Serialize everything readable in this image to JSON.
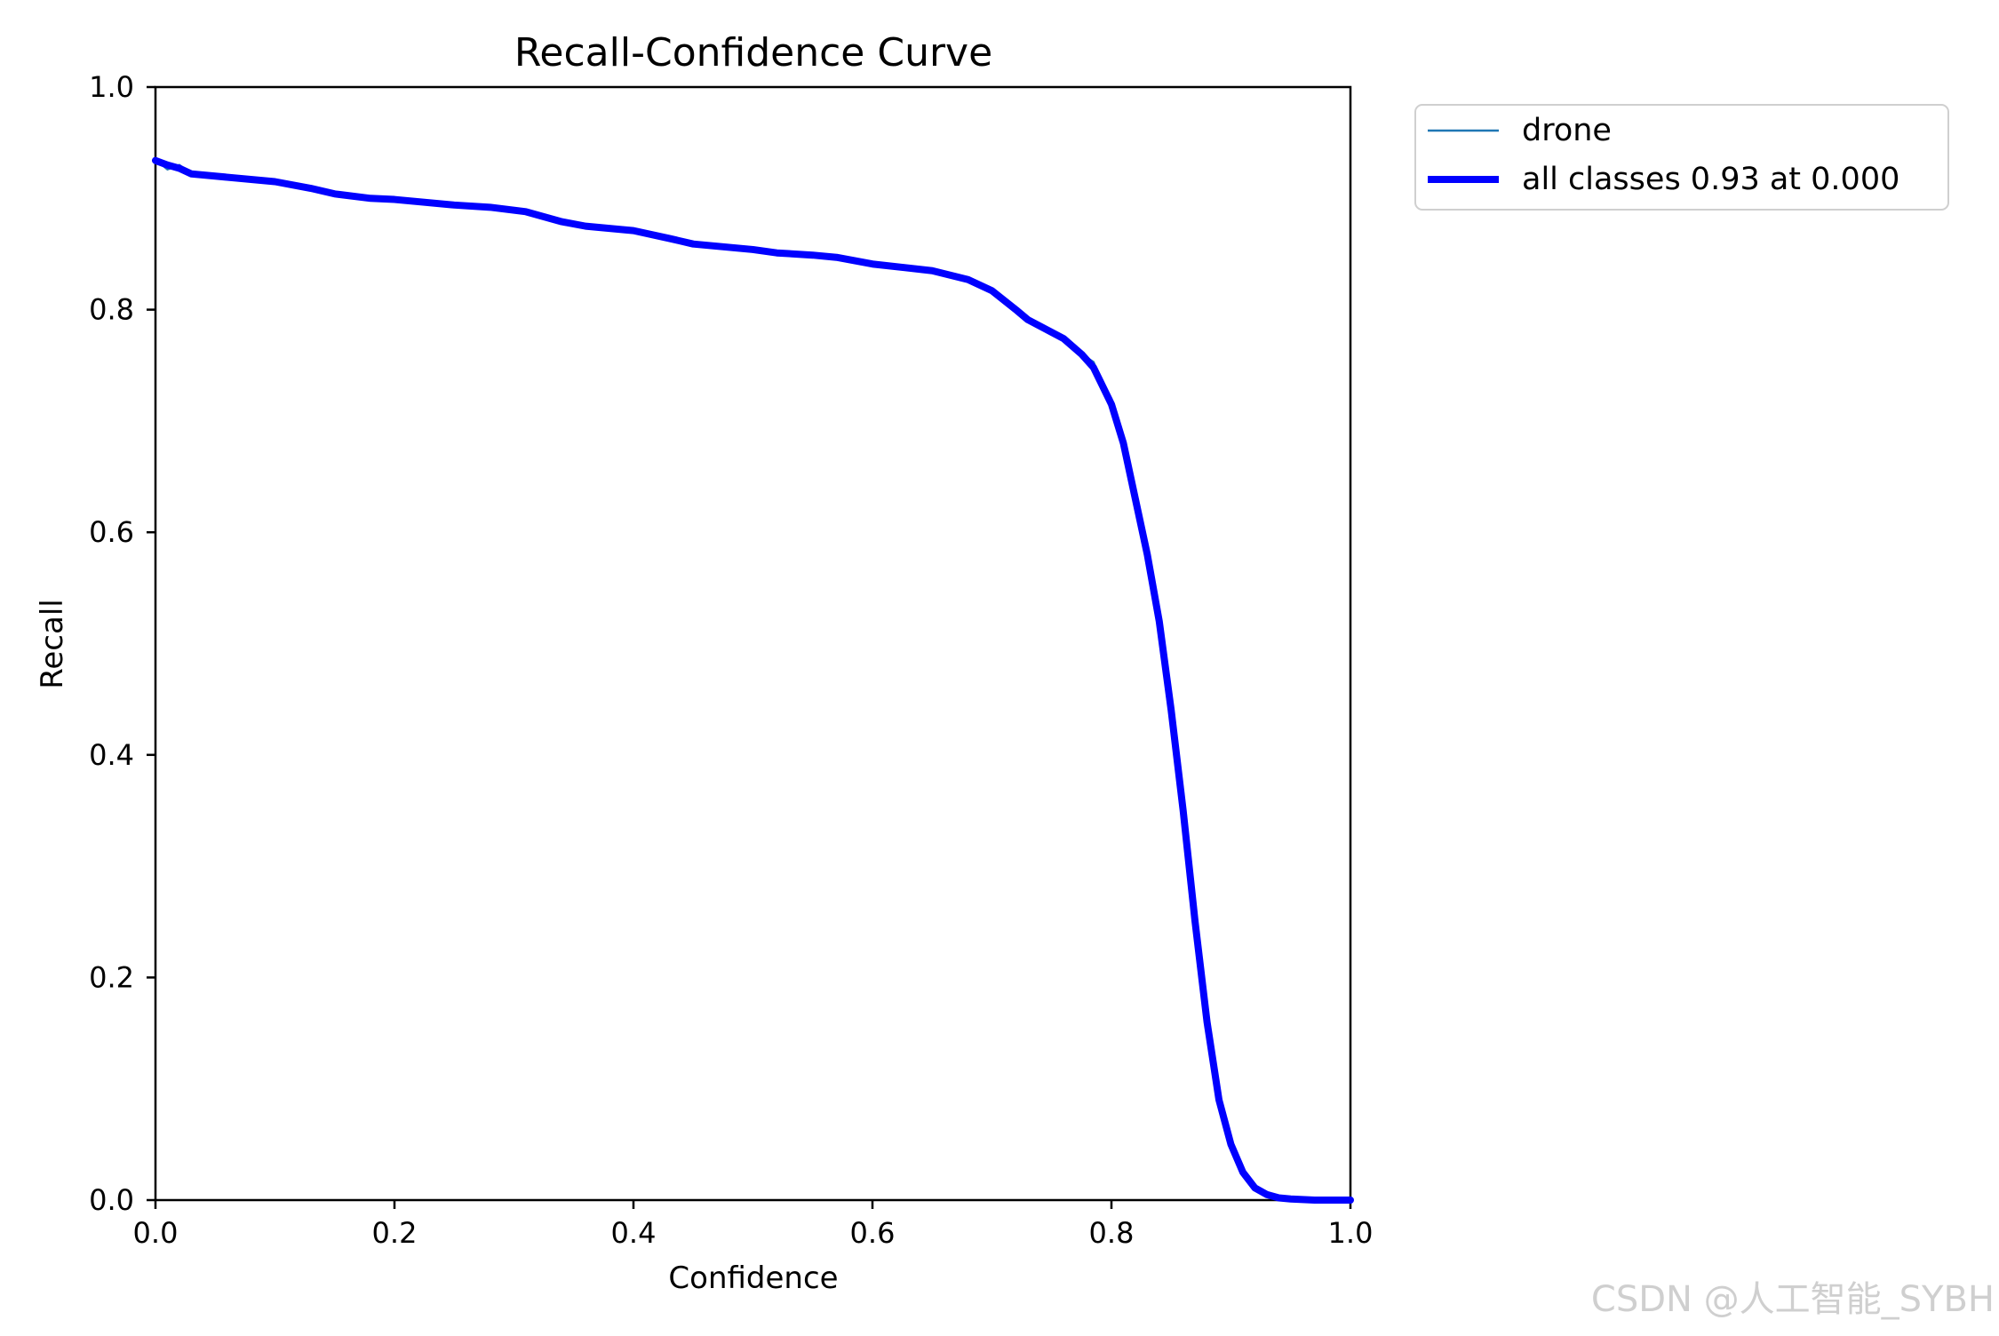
{
  "chart_data": {
    "type": "line",
    "title": "Recall-Confidence Curve",
    "xlabel": "Confidence",
    "ylabel": "Recall",
    "xlim": [
      0.0,
      1.0
    ],
    "ylim": [
      0.0,
      1.0
    ],
    "xticks": [
      "0.0",
      "0.2",
      "0.4",
      "0.6",
      "0.8",
      "1.0"
    ],
    "yticks": [
      "0.0",
      "0.2",
      "0.4",
      "0.6",
      "0.8",
      "1.0"
    ],
    "grid": false,
    "legend_position": "outside upper right",
    "series": [
      {
        "name": "drone",
        "color": "#1f77b4",
        "linewidth": "thin",
        "x": [
          0.0,
          0.01,
          0.02,
          0.03,
          0.05,
          0.1,
          0.13,
          0.15,
          0.18,
          0.2,
          0.22,
          0.25,
          0.28,
          0.31,
          0.34,
          0.36,
          0.4,
          0.43,
          0.45,
          0.47,
          0.5,
          0.52,
          0.55,
          0.57,
          0.6,
          0.65,
          0.68,
          0.7,
          0.72,
          0.73,
          0.76,
          0.775,
          0.785,
          0.79,
          0.8,
          0.81,
          0.82,
          0.83,
          0.84,
          0.85,
          0.86,
          0.87,
          0.88,
          0.89,
          0.9,
          0.91,
          0.92,
          0.93,
          0.94,
          0.95,
          0.97,
          1.0
        ],
        "y": [
          0.935,
          0.926,
          0.93,
          0.922,
          0.92,
          0.915,
          0.908,
          0.903,
          0.9,
          0.899,
          0.896,
          0.893,
          0.892,
          0.887,
          0.878,
          0.874,
          0.871,
          0.862,
          0.858,
          0.856,
          0.853,
          0.85,
          0.848,
          0.846,
          0.84,
          0.834,
          0.826,
          0.819,
          0.8,
          0.79,
          0.773,
          0.76,
          0.753,
          0.74,
          0.72,
          0.68,
          0.63,
          0.58,
          0.52,
          0.44,
          0.35,
          0.25,
          0.16,
          0.09,
          0.05,
          0.022,
          0.01,
          0.004,
          0.002,
          0.001,
          0.0,
          0.0
        ]
      },
      {
        "name": "all classes 0.93 at 0.000",
        "color": "#0000ff",
        "linewidth": "thick",
        "x": [
          0.0,
          0.01,
          0.02,
          0.03,
          0.05,
          0.1,
          0.13,
          0.15,
          0.18,
          0.2,
          0.22,
          0.25,
          0.28,
          0.31,
          0.34,
          0.36,
          0.4,
          0.43,
          0.45,
          0.47,
          0.5,
          0.52,
          0.55,
          0.57,
          0.6,
          0.65,
          0.68,
          0.7,
          0.72,
          0.73,
          0.76,
          0.775,
          0.785,
          0.79,
          0.8,
          0.81,
          0.82,
          0.83,
          0.84,
          0.85,
          0.86,
          0.87,
          0.88,
          0.89,
          0.9,
          0.91,
          0.92,
          0.93,
          0.94,
          0.95,
          0.97,
          1.0
        ],
        "y": [
          0.934,
          0.93,
          0.927,
          0.922,
          0.92,
          0.915,
          0.909,
          0.904,
          0.9,
          0.899,
          0.897,
          0.894,
          0.892,
          0.888,
          0.879,
          0.875,
          0.871,
          0.864,
          0.859,
          0.857,
          0.854,
          0.851,
          0.849,
          0.847,
          0.841,
          0.835,
          0.827,
          0.817,
          0.8,
          0.791,
          0.774,
          0.76,
          0.748,
          0.737,
          0.715,
          0.68,
          0.63,
          0.58,
          0.52,
          0.44,
          0.35,
          0.25,
          0.16,
          0.09,
          0.05,
          0.025,
          0.011,
          0.005,
          0.002,
          0.001,
          0.0,
          0.0
        ]
      }
    ],
    "legend": [
      "drone",
      "all classes 0.93 at 0.000"
    ]
  },
  "watermark": "CSDN @人工智能_SYBH"
}
